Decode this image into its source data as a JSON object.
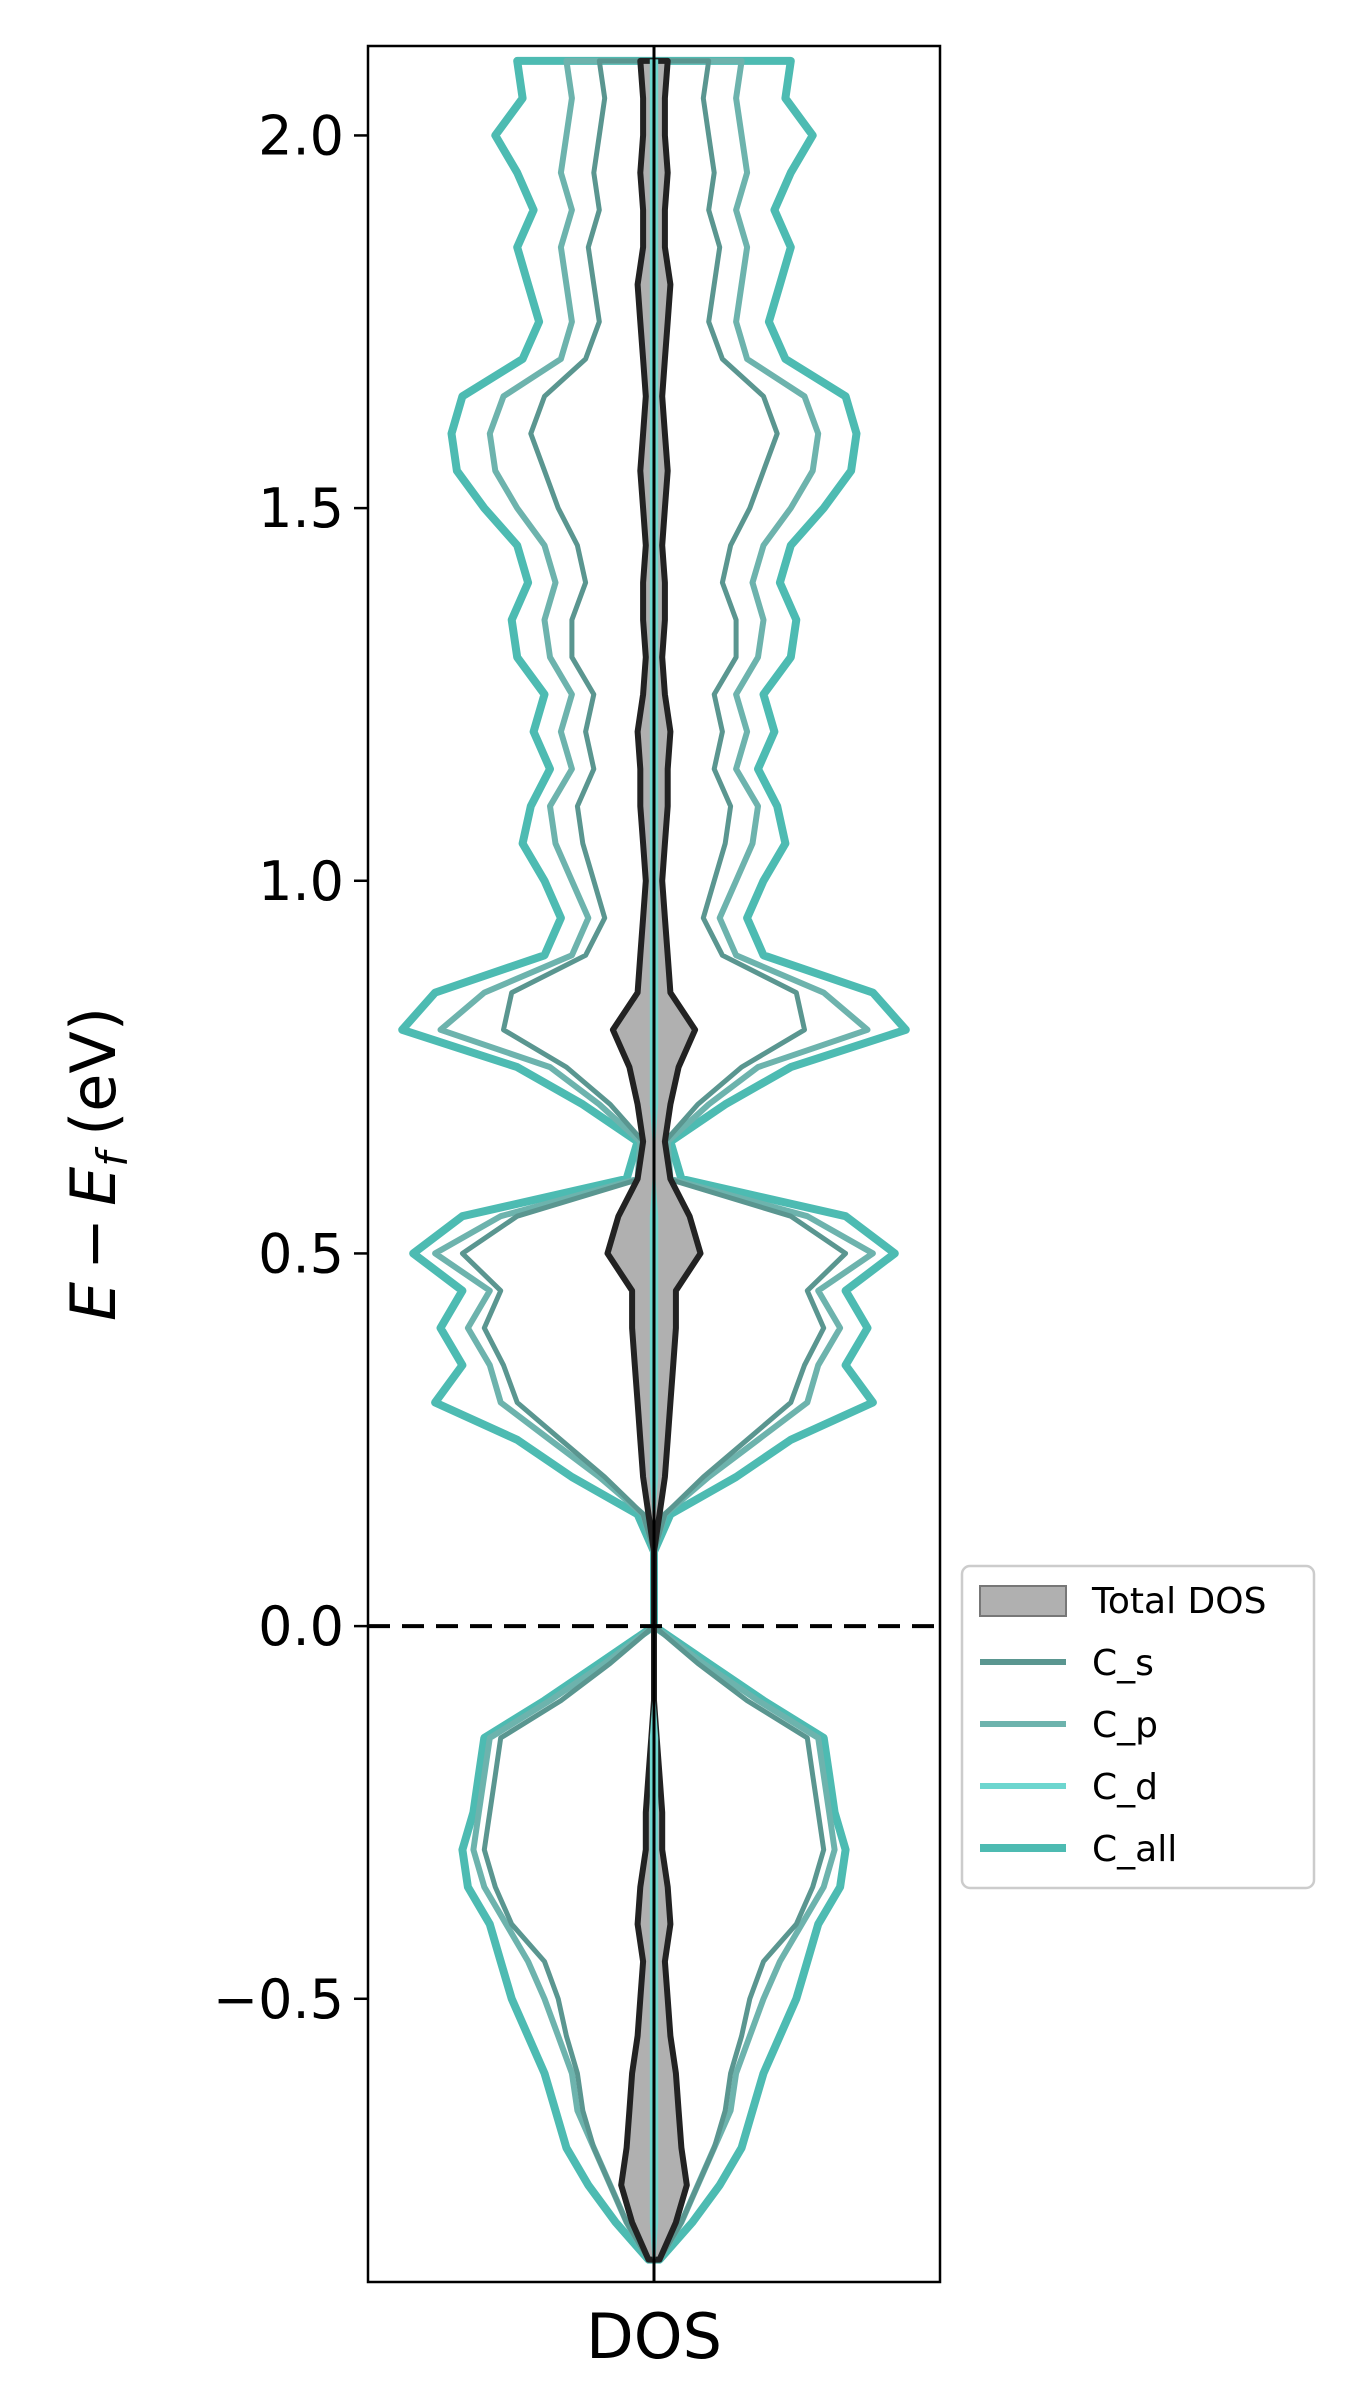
{
  "chart_data": {
    "type": "line",
    "orientation": "vertical",
    "xlabel": "DOS",
    "ylabel_parts": {
      "E": "E",
      "minus": "−",
      "Ef": "E",
      "sub": "f",
      "unit": "(eV)"
    },
    "ylim": [
      -0.88,
      2.12
    ],
    "yticks": [
      {
        "value": -0.5,
        "label": "−0.5"
      },
      {
        "value": 0.0,
        "label": "0.0"
      },
      {
        "value": 0.5,
        "label": "0.5"
      },
      {
        "value": 1.0,
        "label": "1.0"
      },
      {
        "value": 1.5,
        "label": "1.5"
      },
      {
        "value": 2.0,
        "label": "2.0"
      }
    ],
    "fermi_level": 0.0,
    "legend": {
      "placement": "outside-right",
      "entries": [
        "Total DOS",
        "C_s",
        "C_p",
        "C_d",
        "C_all"
      ]
    },
    "colors": {
      "total_fill": "#b0b0b0",
      "total_line": "#222222",
      "C_s": "#5a9690",
      "C_p": "#6db3ad",
      "C_d": "#6dd6cf",
      "C_all": "#4dbbb2"
    },
    "energy": [
      -0.85,
      -0.8,
      -0.75,
      -0.7,
      -0.65,
      -0.6,
      -0.55,
      -0.5,
      -0.45,
      -0.4,
      -0.35,
      -0.3,
      -0.25,
      -0.2,
      -0.15,
      -0.1,
      -0.05,
      0.0,
      0.05,
      0.1,
      0.15,
      0.2,
      0.25,
      0.3,
      0.35,
      0.4,
      0.45,
      0.5,
      0.55,
      0.6,
      0.65,
      0.7,
      0.75,
      0.8,
      0.85,
      0.9,
      0.95,
      1.0,
      1.05,
      1.1,
      1.15,
      1.2,
      1.25,
      1.3,
      1.35,
      1.4,
      1.45,
      1.5,
      1.55,
      1.6,
      1.65,
      1.7,
      1.75,
      1.8,
      1.85,
      1.9,
      1.95,
      2.0,
      2.05,
      2.1
    ],
    "series": [
      {
        "name": "Total DOS",
        "values": [
          0.02,
          0.08,
          0.12,
          0.1,
          0.09,
          0.08,
          0.06,
          0.05,
          0.04,
          0.06,
          0.05,
          0.03,
          0.03,
          0.02,
          0.01,
          0.0,
          0.0,
          0.0,
          0.0,
          0.0,
          0.02,
          0.04,
          0.05,
          0.06,
          0.07,
          0.08,
          0.08,
          0.17,
          0.13,
          0.06,
          0.04,
          0.06,
          0.09,
          0.15,
          0.06,
          0.05,
          0.04,
          0.03,
          0.04,
          0.05,
          0.05,
          0.06,
          0.04,
          0.03,
          0.04,
          0.04,
          0.03,
          0.04,
          0.05,
          0.04,
          0.03,
          0.04,
          0.05,
          0.06,
          0.04,
          0.04,
          0.05,
          0.04,
          0.04,
          0.05
        ]
      },
      {
        "name": "C_s",
        "values": [
          0.02,
          0.1,
          0.16,
          0.22,
          0.26,
          0.28,
          0.32,
          0.35,
          0.4,
          0.52,
          0.58,
          0.62,
          0.6,
          0.58,
          0.56,
          0.34,
          0.16,
          0.0,
          0.0,
          0.0,
          0.04,
          0.18,
          0.34,
          0.5,
          0.55,
          0.62,
          0.56,
          0.7,
          0.5,
          0.05,
          0.04,
          0.16,
          0.32,
          0.55,
          0.52,
          0.25,
          0.18,
          0.22,
          0.26,
          0.28,
          0.22,
          0.25,
          0.22,
          0.3,
          0.3,
          0.25,
          0.28,
          0.35,
          0.4,
          0.45,
          0.4,
          0.25,
          0.2,
          0.22,
          0.24,
          0.2,
          0.22,
          0.2,
          0.18,
          0.2
        ]
      },
      {
        "name": "C_p",
        "values": [
          0.02,
          0.1,
          0.16,
          0.22,
          0.28,
          0.3,
          0.35,
          0.4,
          0.46,
          0.54,
          0.62,
          0.66,
          0.64,
          0.62,
          0.6,
          0.38,
          0.18,
          0.0,
          0.0,
          0.0,
          0.04,
          0.2,
          0.38,
          0.56,
          0.6,
          0.68,
          0.6,
          0.8,
          0.56,
          0.06,
          0.05,
          0.2,
          0.38,
          0.78,
          0.62,
          0.3,
          0.24,
          0.3,
          0.36,
          0.38,
          0.3,
          0.34,
          0.3,
          0.38,
          0.4,
          0.36,
          0.4,
          0.5,
          0.58,
          0.6,
          0.55,
          0.34,
          0.3,
          0.32,
          0.34,
          0.3,
          0.34,
          0.32,
          0.3,
          0.32
        ]
      },
      {
        "name": "C_d",
        "values": [
          0.0,
          0.01,
          0.01,
          0.01,
          0.01,
          0.01,
          0.01,
          0.01,
          0.01,
          0.01,
          0.01,
          0.01,
          0.01,
          0.01,
          0.01,
          0.0,
          0.0,
          0.0,
          0.0,
          0.0,
          0.0,
          0.01,
          0.01,
          0.01,
          0.01,
          0.01,
          0.01,
          0.01,
          0.01,
          0.0,
          0.0,
          0.01,
          0.01,
          0.01,
          0.01,
          0.01,
          0.01,
          0.01,
          0.01,
          0.01,
          0.01,
          0.01,
          0.01,
          0.01,
          0.01,
          0.01,
          0.01,
          0.01,
          0.01,
          0.01,
          0.01,
          0.01,
          0.01,
          0.01,
          0.01,
          0.01,
          0.01,
          0.01,
          0.01,
          0.01
        ]
      },
      {
        "name": "C_all",
        "values": [
          0.02,
          0.14,
          0.24,
          0.32,
          0.36,
          0.4,
          0.46,
          0.52,
          0.56,
          0.6,
          0.68,
          0.7,
          0.66,
          0.64,
          0.62,
          0.4,
          0.2,
          0.0,
          0.0,
          0.0,
          0.06,
          0.3,
          0.5,
          0.8,
          0.7,
          0.78,
          0.7,
          0.88,
          0.7,
          0.1,
          0.06,
          0.26,
          0.5,
          0.92,
          0.8,
          0.4,
          0.34,
          0.4,
          0.48,
          0.45,
          0.38,
          0.44,
          0.4,
          0.5,
          0.52,
          0.46,
          0.5,
          0.62,
          0.72,
          0.74,
          0.7,
          0.48,
          0.42,
          0.46,
          0.5,
          0.44,
          0.5,
          0.58,
          0.48,
          0.5
        ]
      }
    ]
  }
}
